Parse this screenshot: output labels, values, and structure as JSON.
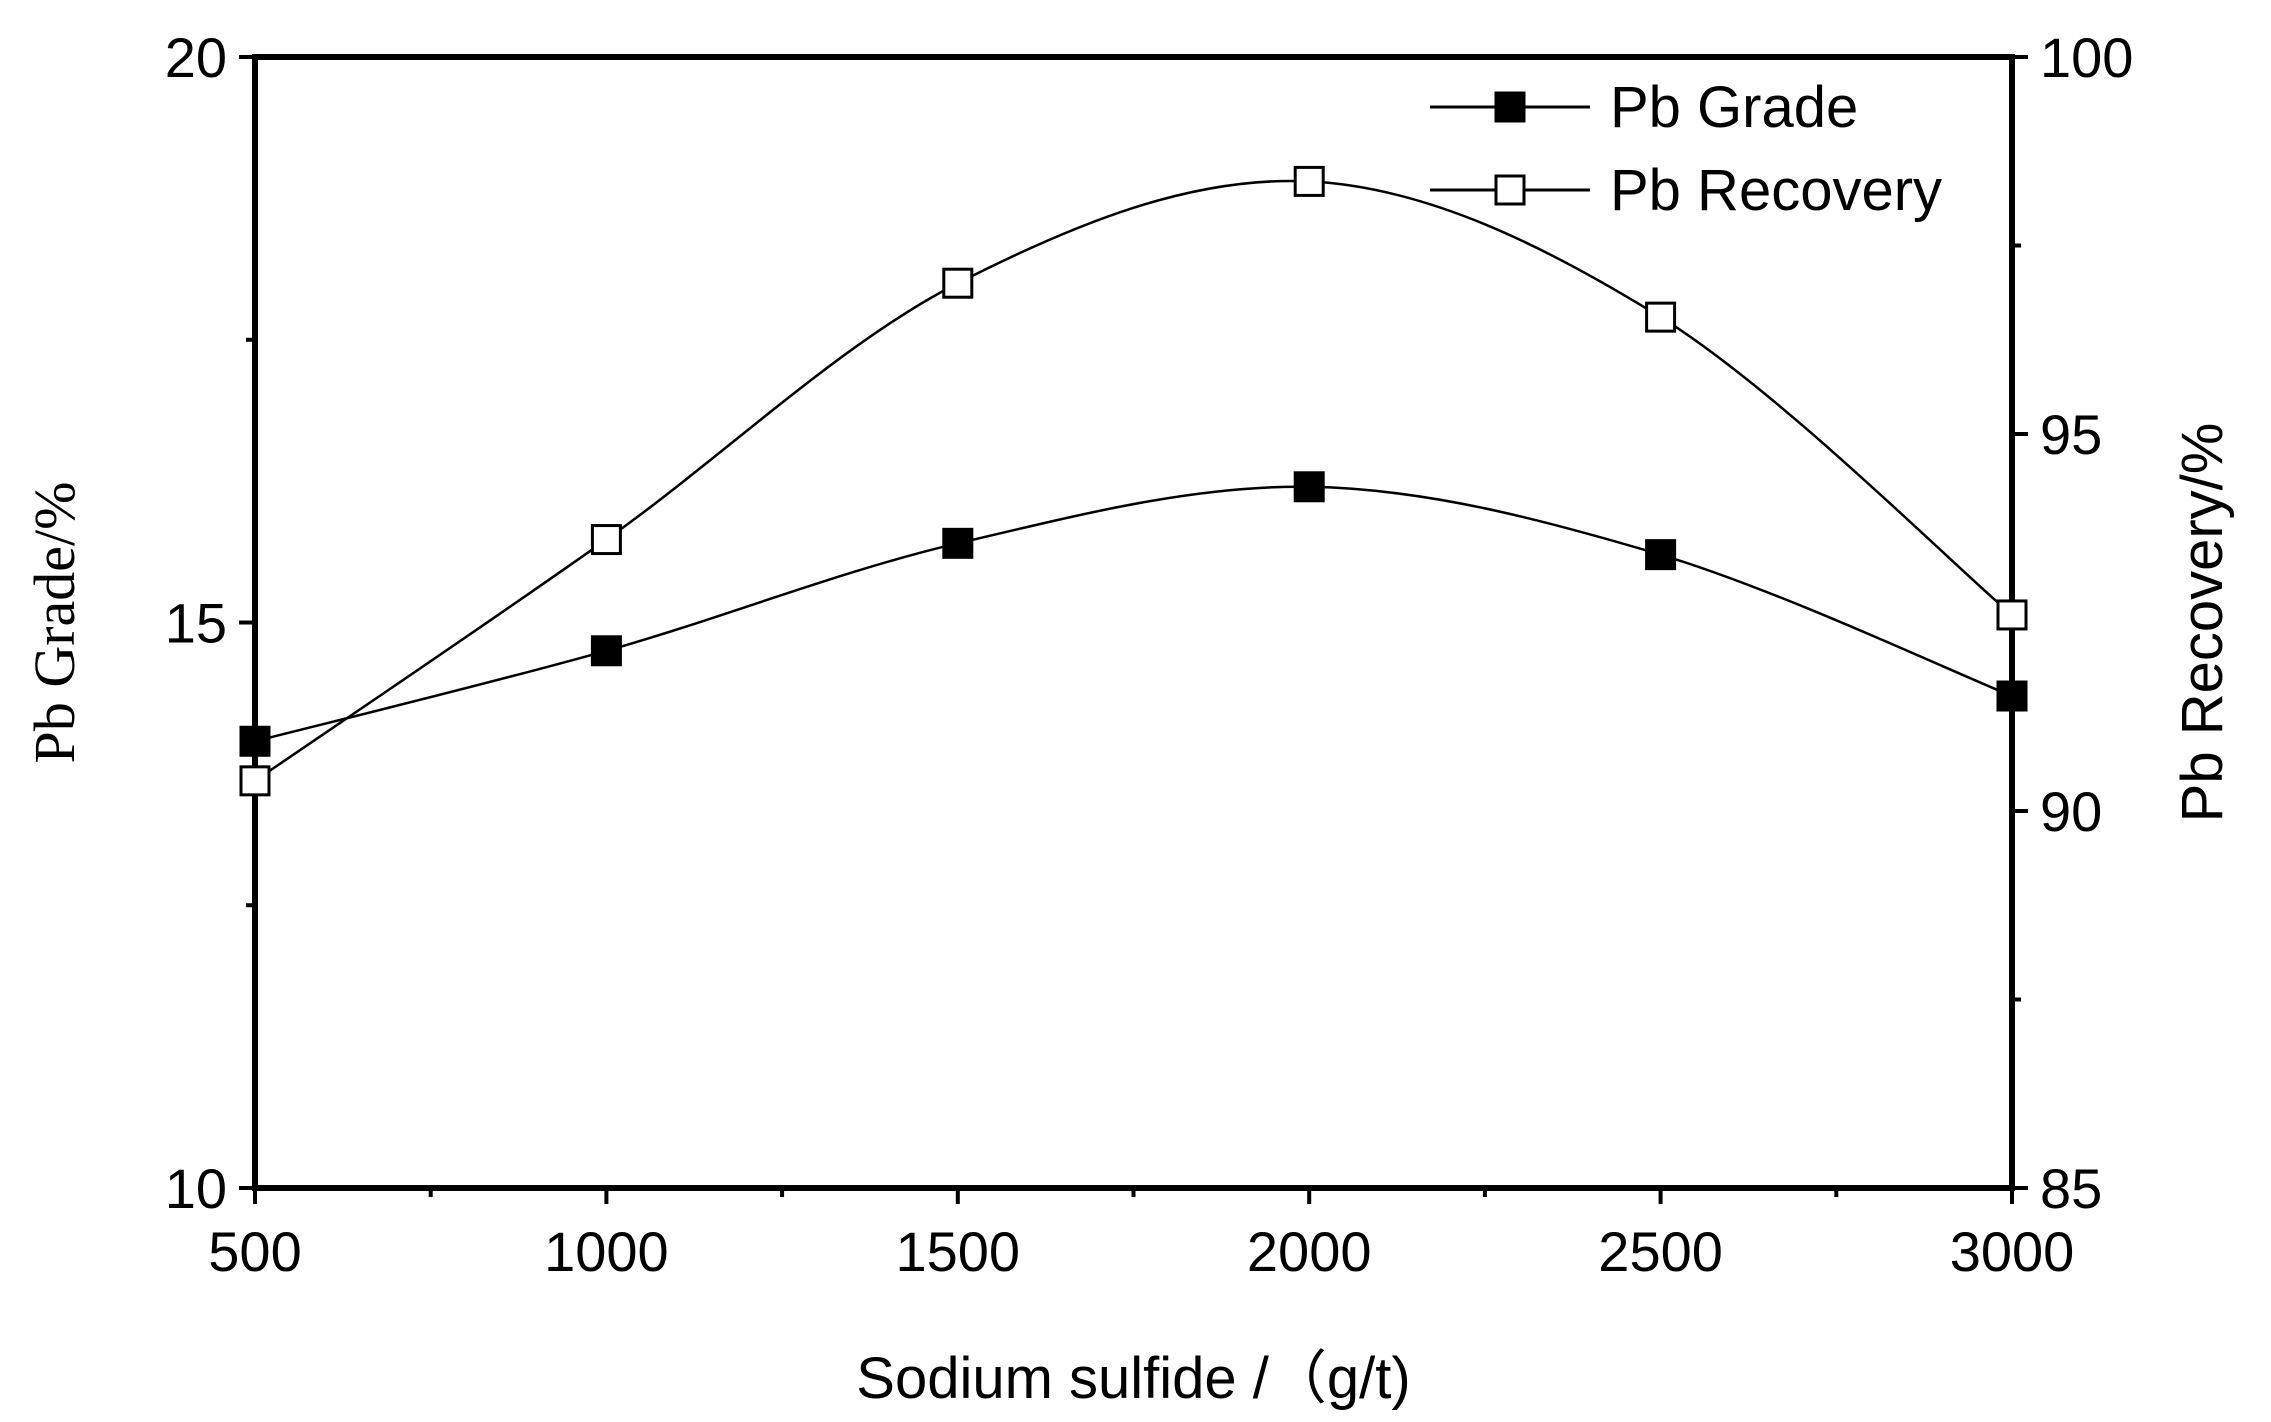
{
  "chart_data": {
    "type": "line",
    "title": "",
    "xlabel": "Sodium sulfide /（g/t)",
    "ylabel_left": "Pb Grade/%",
    "ylabel_right": "Pb Recovery/%",
    "x": [
      500,
      1000,
      1500,
      2000,
      2500,
      3000
    ],
    "xlim": [
      500,
      3000
    ],
    "xticks": [
      "500",
      "1000",
      "1500",
      "2000",
      "2500",
      "3000"
    ],
    "ylim_left": [
      10,
      20
    ],
    "yticks_left": [
      "10",
      "15",
      "20"
    ],
    "ylim_right": [
      85,
      100
    ],
    "yticks_right": [
      "85",
      "90",
      "95",
      "100"
    ],
    "grid": false,
    "legend_position": "top-right",
    "series": [
      {
        "name": "Pb Grade",
        "axis": "left",
        "marker": "filled-square",
        "values": [
          13.95,
          14.75,
          15.7,
          16.2,
          15.6,
          14.35
        ]
      },
      {
        "name": "Pb Recovery",
        "axis": "right",
        "marker": "open-square",
        "values": [
          90.4,
          93.6,
          97.0,
          98.35,
          96.55,
          92.6
        ]
      }
    ]
  }
}
